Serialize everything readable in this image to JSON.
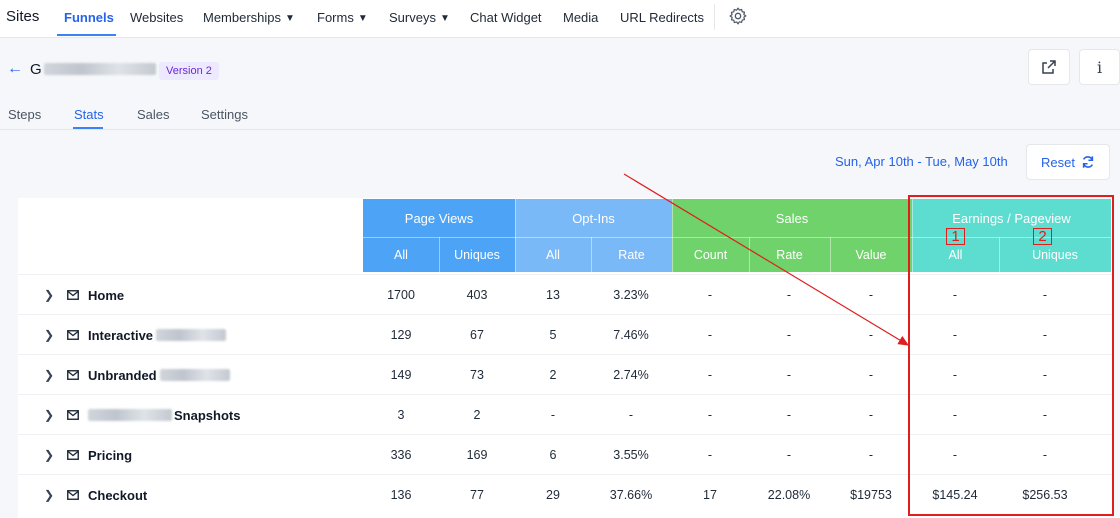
{
  "nav": {
    "brand": "Sites",
    "items": [
      {
        "label": "Funnels",
        "active": true
      },
      {
        "label": "Websites"
      },
      {
        "label": "Memberships",
        "dropdown": true
      },
      {
        "label": "Forms",
        "dropdown": true
      },
      {
        "label": "Surveys",
        "dropdown": true
      },
      {
        "label": "Chat Widget"
      },
      {
        "label": "Media"
      },
      {
        "label": "URL Redirects"
      }
    ]
  },
  "header": {
    "title_prefix": "G",
    "version_badge": "Version 2"
  },
  "subtabs": [
    "Steps",
    "Stats",
    "Sales",
    "Settings"
  ],
  "date_range": "Sun, Apr 10th - Tue, May 10th",
  "reset_label": "Reset",
  "table": {
    "groups": {
      "page_views": "Page Views",
      "opt_ins": "Opt-Ins",
      "sales": "Sales",
      "earnings": "Earnings / Pageview"
    },
    "subheaders": {
      "pv_all": "All",
      "pv_uniques": "Uniques",
      "oi_all": "All",
      "oi_rate": "Rate",
      "s_count": "Count",
      "s_rate": "Rate",
      "s_value": "Value",
      "e_all": "All",
      "e_uniques": "Uniques"
    },
    "colors": {
      "page_views": "#4da3f6",
      "opt_ins": "#7ab9f8",
      "sales": "#6fd26b",
      "earnings": "#5dddd0"
    },
    "rows": [
      {
        "name": "Home",
        "values": [
          "1700",
          "403",
          "13",
          "3.23%",
          "-",
          "-",
          "-",
          "-",
          "-"
        ]
      },
      {
        "name": "Interactive",
        "values": [
          "129",
          "67",
          "5",
          "7.46%",
          "-",
          "-",
          "-",
          "-",
          "-"
        ]
      },
      {
        "name": "Unbranded",
        "values": [
          "149",
          "73",
          "2",
          "2.74%",
          "-",
          "-",
          "-",
          "-",
          "-"
        ]
      },
      {
        "name": "Snapshots",
        "values": [
          "3",
          "2",
          "-",
          "-",
          "-",
          "-",
          "-",
          "-",
          "-"
        ]
      },
      {
        "name": "Pricing",
        "values": [
          "336",
          "169",
          "6",
          "3.55%",
          "-",
          "-",
          "-",
          "-",
          "-"
        ]
      },
      {
        "name": "Checkout",
        "values": [
          "136",
          "77",
          "29",
          "37.66%",
          "17",
          "22.08%",
          "$19753",
          "$145.24",
          "$256.53"
        ]
      }
    ]
  },
  "annotations": {
    "marker_1": "1",
    "marker_2": "2",
    "color": "#e11d1d"
  }
}
